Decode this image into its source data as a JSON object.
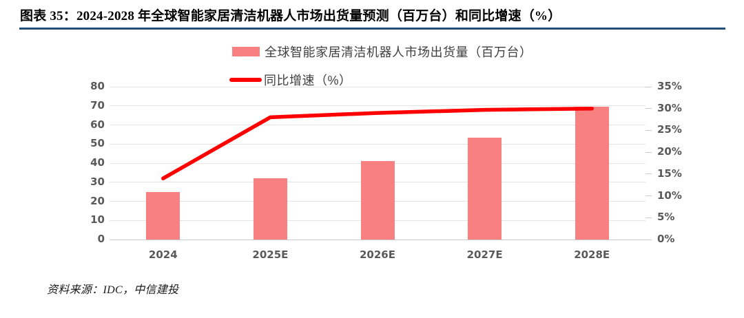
{
  "header": {
    "title": "图表 35：2024-2028 年全球智能家居清洁机器人市场出货量预测（百万台）和同比增速（%）"
  },
  "legend": {
    "items": [
      {
        "label": "全球智能家居清洁机器人市场出货量（百万台）",
        "marker": "bar-swatch"
      },
      {
        "label": "同比增速（%）",
        "marker": "line-swatch"
      }
    ]
  },
  "source": "资料来源：IDC，中信建投",
  "colors": {
    "bar": "#f98080",
    "line": "#fe0000",
    "grid": "#e4e4e4",
    "baseline": "#c9c9c9",
    "tick": "#c9c9c9",
    "axis_text": "#595959",
    "title_rule": "#1f4e79"
  },
  "chart_data": {
    "type": "bar",
    "subtype": "combo-bar-line",
    "title": "2024-2028 年全球智能家居清洁机器人市场出货量预测（百万台）和同比增速（%）",
    "categories": [
      "2024",
      "2025E",
      "2026E",
      "2027E",
      "2028E"
    ],
    "series": [
      {
        "name": "全球智能家居清洁机器人市场出货量（百万台）",
        "type": "bar",
        "axis": "left",
        "values": [
          25,
          32,
          41,
          53.5,
          69.5
        ]
      },
      {
        "name": "同比增速（%）",
        "type": "line",
        "axis": "right",
        "values": [
          14,
          28,
          29,
          29.7,
          30
        ]
      }
    ],
    "left_axis": {
      "min": 0,
      "max": 80,
      "step": 10,
      "ticks": [
        "0",
        "10",
        "20",
        "30",
        "40",
        "50",
        "60",
        "70",
        "80"
      ]
    },
    "right_axis": {
      "min": 0,
      "max": 35,
      "step": 5,
      "ticks": [
        "0%",
        "5%",
        "10%",
        "15%",
        "20%",
        "25%",
        "30%",
        "35%"
      ]
    },
    "grid": true,
    "legend_position": "top",
    "xlabel": "",
    "ylabel": ""
  }
}
